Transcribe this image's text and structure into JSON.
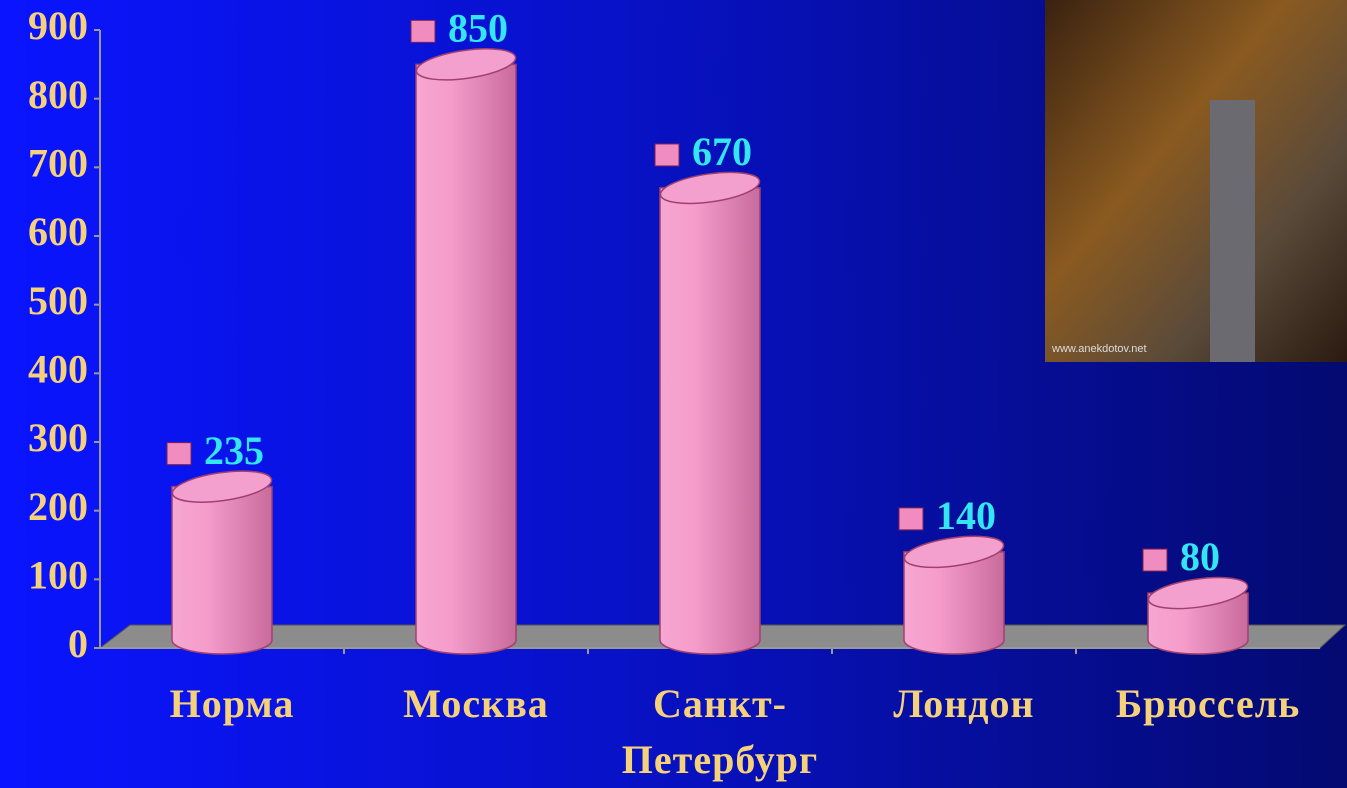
{
  "chart_data": {
    "type": "bar",
    "categories": [
      "Норма",
      "Москва",
      "Санкт-Петербург",
      "Лондон",
      "Брюссель"
    ],
    "values": [
      235,
      850,
      670,
      140,
      80
    ],
    "color": "#f08cc0",
    "ylim": [
      0,
      900
    ],
    "yticks": [
      0,
      100,
      200,
      300,
      400,
      500,
      600,
      700,
      800,
      900
    ],
    "image_caption": "www.anekdotov.net"
  }
}
